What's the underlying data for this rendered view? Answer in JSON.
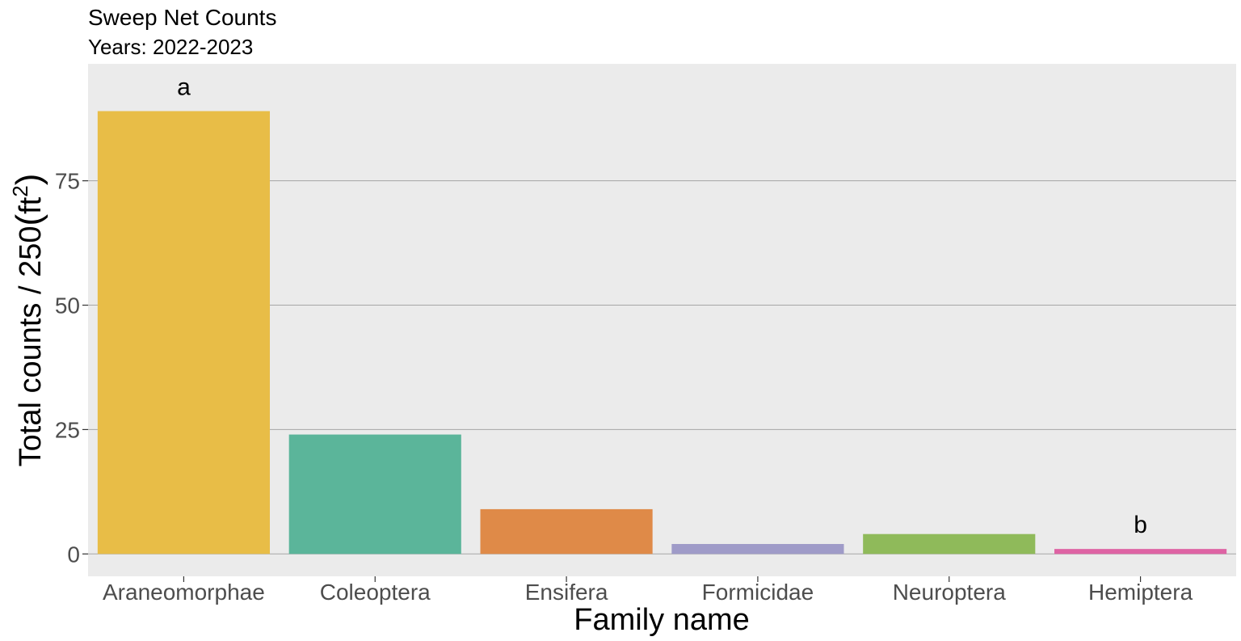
{
  "chart_data": {
    "type": "bar",
    "title": "Sweep Net Counts",
    "subtitle": "Years: 2022-2023",
    "xlabel": "Family name",
    "ylabel_main": "Total counts / 250",
    "ylabel_unit": "ft",
    "ylabel_exponent": "2",
    "categories": [
      "Araneomorphae",
      "Coleoptera",
      "Ensifera",
      "Formicidae",
      "Neuroptera",
      "Hemiptera"
    ],
    "values": [
      89,
      24,
      9,
      2,
      4,
      1
    ],
    "colors": [
      "#E8BD47",
      "#5BB59A",
      "#DF8A48",
      "#9F9BC8",
      "#8FBA5A",
      "#DE63A4"
    ],
    "bar_labels": [
      "a",
      "",
      "",
      "",
      "",
      "b"
    ],
    "ylim": [
      -4.5,
      98.5
    ],
    "yticks": [
      0,
      25,
      50,
      75
    ],
    "panel_background": "#EBEBEB",
    "gridline_color": "#A6A6A6",
    "grid": "horizontal-major"
  }
}
